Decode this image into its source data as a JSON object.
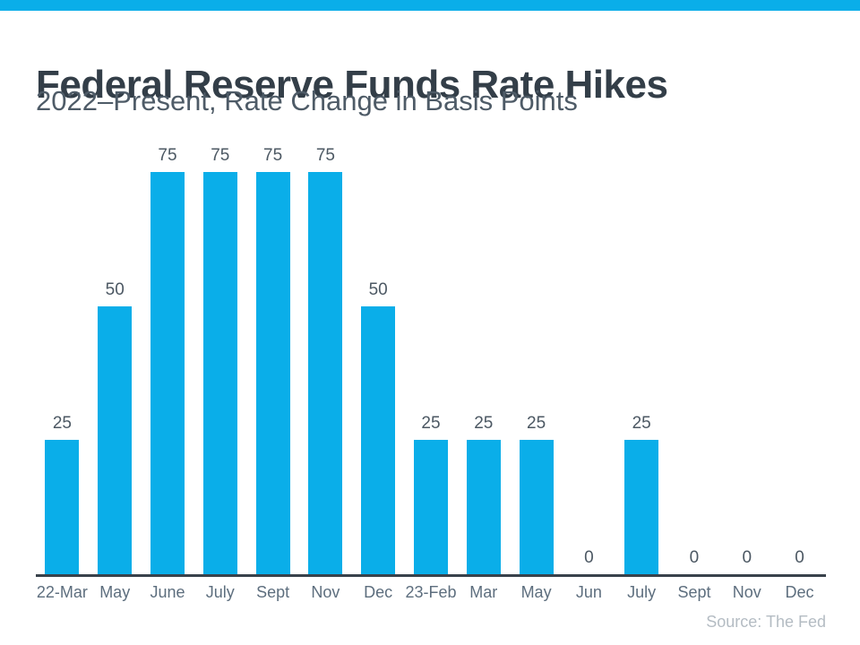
{
  "title": "Federal Reserve Funds Rate Hikes",
  "subtitle": "2022–Present, Rate Change in Basis Points",
  "source_note": "Source: The Fed",
  "colors": {
    "accent": "#0AAEE9",
    "title_text": "#333E48",
    "subtitle_text": "#4E5B67",
    "value_label_text": "#4C5863",
    "tick_label_text": "#5D6E7E",
    "axis_line": "#39424B",
    "source_text": "#B4BCC3"
  },
  "chart_data": {
    "type": "bar",
    "title": "Federal Reserve Funds Rate Hikes",
    "subtitle": "2022–Present, Rate Change in Basis Points",
    "categories": [
      "22-Mar",
      "May",
      "June",
      "July",
      "Sept",
      "Nov",
      "Dec",
      "23-Feb",
      "Mar",
      "May",
      "Jun",
      "July",
      "Sept",
      "Nov",
      "Dec"
    ],
    "values": [
      25,
      50,
      75,
      75,
      75,
      75,
      50,
      25,
      25,
      25,
      0,
      25,
      0,
      0,
      0
    ],
    "xlabel": "",
    "ylabel": "Rate Change in Basis Points",
    "ylim": [
      0,
      75
    ],
    "bar_color": "#0AAEE9",
    "value_labels_shown": true,
    "grid": false,
    "legend": false,
    "annotation": "Source: The Fed"
  }
}
